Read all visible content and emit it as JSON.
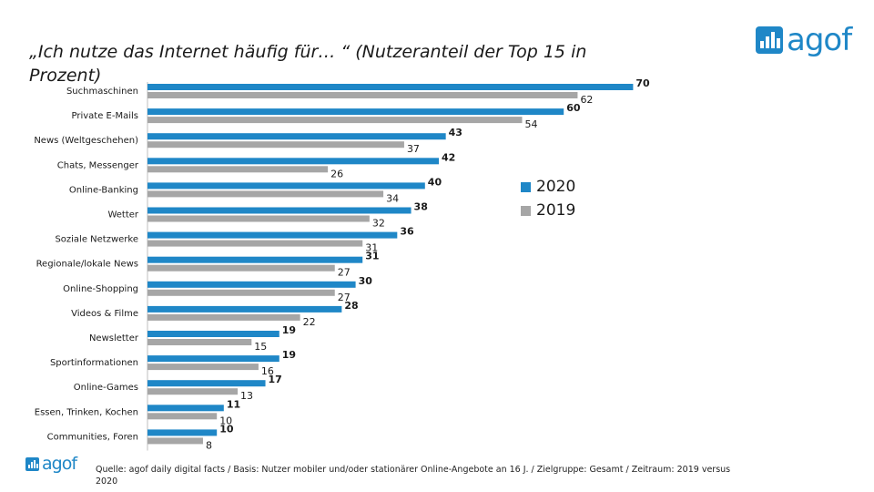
{
  "title": {
    "line1": "„Ich nutze das Internet häufig für… “",
    "line2": "(Nutzeranteil der Top 15 in Prozent)"
  },
  "logo": {
    "text": "agof"
  },
  "source": "Quelle: agof daily digital facts / Basis: Nutzer mobiler und/oder stationärer Online-Angebote an 16 J. / Zielgruppe: Gesamt / Zeitraum: 2019 versus 2020",
  "colors": {
    "s2020": "#1f87c7",
    "s2019": "#a6a6a6"
  },
  "chart_data": {
    "type": "bar",
    "orientation": "horizontal",
    "title": "„Ich nutze das Internet häufig für… “ (Nutzeranteil der Top 15 in Prozent)",
    "categories": [
      "Suchmaschinen",
      "Private E-Mails",
      "News (Weltgeschehen)",
      "Chats, Messenger",
      "Online-Banking",
      "Wetter",
      "Soziale Netzwerke",
      "Regionale/lokale News",
      "Online-Shopping",
      "Videos & Filme",
      "Newsletter",
      "Sportinformationen",
      "Online-Games",
      "Essen, Trinken, Kochen",
      "Communities, Foren"
    ],
    "series": [
      {
        "name": "2020",
        "values": [
          70,
          60,
          43,
          42,
          40,
          38,
          36,
          31,
          30,
          28,
          19,
          19,
          17,
          11,
          10
        ]
      },
      {
        "name": "2019",
        "values": [
          62,
          54,
          37,
          26,
          34,
          32,
          31,
          27,
          27,
          22,
          15,
          16,
          13,
          10,
          8
        ]
      }
    ],
    "legend": "right"
  }
}
